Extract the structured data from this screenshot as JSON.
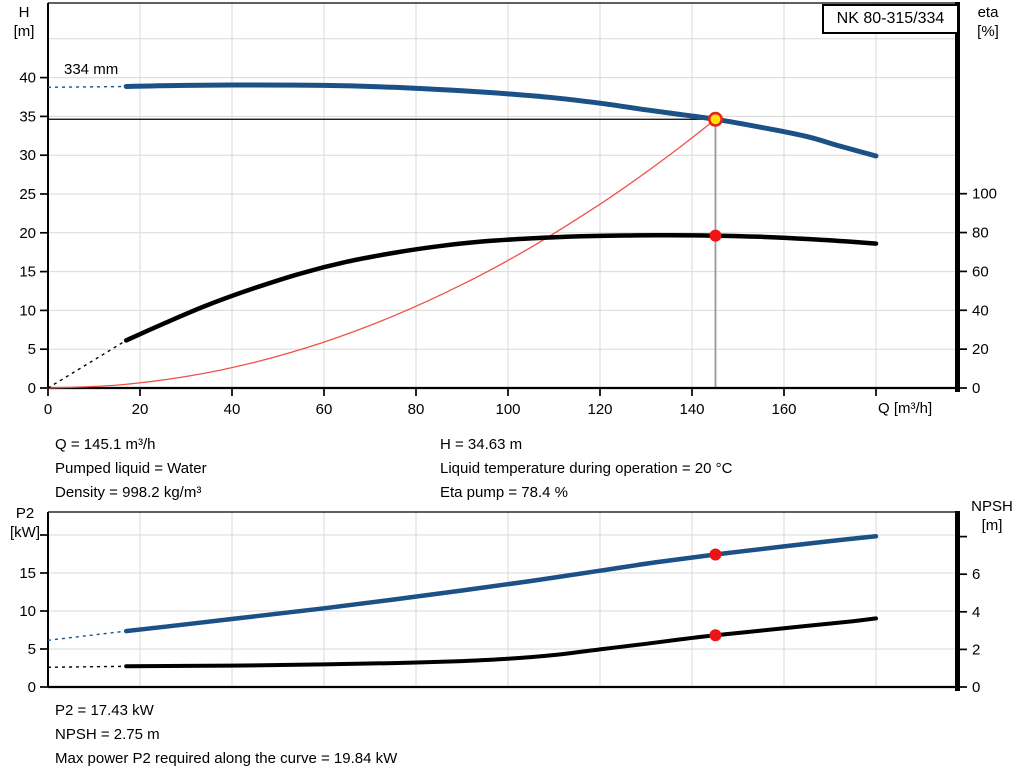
{
  "pump_model": "NK 80-315/334",
  "impeller_label": "334 mm",
  "colors": {
    "curve_blue": "#1b5186",
    "curve_black": "#000000",
    "system_red": "#f05048",
    "marker_red": "#ee1414",
    "marker_yellow": "#ffe10a",
    "marker_ring": "#e8251d",
    "grid": "#d9d9d9",
    "op_line_gray": "#999999"
  },
  "chart_data": [
    {
      "name": "performance-chart",
      "type": "line",
      "xlabel": "Q [m³/h]",
      "left_axis": {
        "title": [
          "H",
          "[m]"
        ],
        "ticks": [
          0,
          5,
          10,
          15,
          20,
          25,
          30,
          35,
          40
        ],
        "unlabeled_ticks": [],
        "range": [
          0,
          49.6
        ]
      },
      "right_axis": {
        "title": [
          "eta",
          "[%]"
        ],
        "ticks": [
          0,
          20,
          40,
          60,
          80,
          100
        ],
        "unlabeled_ticks": []
      },
      "x_axis": {
        "ticks": [
          0,
          20,
          40,
          60,
          80,
          100,
          120,
          140,
          160
        ],
        "unlabeled_ticks": [
          180
        ],
        "range": [
          0,
          197.4
        ]
      },
      "v_grid": [
        20,
        40,
        60,
        80,
        100,
        120,
        140,
        160,
        180
      ],
      "h_grid": [
        5,
        10,
        15,
        20,
        25,
        30,
        35,
        40,
        45
      ],
      "guides": {
        "h_line_y": 34.63,
        "v_line_x": 145.1
      },
      "series": [
        {
          "name": "system-curve",
          "axis": "left",
          "color_key": "system_red",
          "width": 1.3,
          "points": [
            [
              0,
              0
            ],
            [
              15,
              0.37
            ],
            [
              30,
              1.48
            ],
            [
              45,
              3.33
            ],
            [
              60,
              5.92
            ],
            [
              75,
              9.25
            ],
            [
              90,
              13.32
            ],
            [
              105,
              18.13
            ],
            [
              120,
              23.68
            ],
            [
              130,
              27.79
            ],
            [
              138,
              31.32
            ],
            [
              145.1,
              34.63
            ]
          ]
        },
        {
          "name": "head-curve",
          "axis": "left",
          "color_key": "curve_blue",
          "width": 5,
          "dashed_lead": [
            [
              0,
              38.75
            ],
            [
              17,
              38.85
            ]
          ],
          "points": [
            [
              17,
              38.85
            ],
            [
              30,
              39.0
            ],
            [
              45,
              39.05
            ],
            [
              60,
              39.0
            ],
            [
              75,
              38.75
            ],
            [
              90,
              38.3
            ],
            [
              100,
              37.9
            ],
            [
              110,
              37.4
            ],
            [
              120,
              36.7
            ],
            [
              130,
              35.85
            ],
            [
              138,
              35.2
            ],
            [
              145.1,
              34.63
            ],
            [
              155,
              33.6
            ],
            [
              165,
              32.4
            ],
            [
              172,
              31.2
            ],
            [
              180,
              29.9
            ]
          ]
        },
        {
          "name": "efficiency-curve",
          "axis": "right",
          "color_key": "curve_black",
          "width": 4.5,
          "dashed_lead": [
            [
              0,
              0
            ],
            [
              17,
              24.5
            ]
          ],
          "points": [
            [
              17,
              24.5
            ],
            [
              25,
              33
            ],
            [
              35,
              43
            ],
            [
              45,
              51.5
            ],
            [
              55,
              59
            ],
            [
              65,
              65
            ],
            [
              75,
              69.5
            ],
            [
              85,
              73
            ],
            [
              95,
              75.5
            ],
            [
              105,
              77
            ],
            [
              115,
              78
            ],
            [
              125,
              78.5
            ],
            [
              135,
              78.6
            ],
            [
              145.1,
              78.4
            ],
            [
              155,
              77.8
            ],
            [
              165,
              76.7
            ],
            [
              175,
              75.2
            ],
            [
              180,
              74.3
            ]
          ]
        }
      ],
      "markers": [
        {
          "name": "duty-point-marker",
          "x": 145.1,
          "y": 34.63,
          "axis": "left",
          "style": "yellow"
        },
        {
          "name": "efficiency-point-marker",
          "x": 145.1,
          "y": 78.4,
          "axis": "right",
          "style": "red"
        }
      ]
    },
    {
      "name": "power-npsh-chart",
      "type": "line",
      "xlabel": "",
      "left_axis": {
        "title": [
          "P2",
          "[kW]"
        ],
        "ticks": [
          0,
          5,
          10,
          15
        ],
        "unlabeled_ticks": [
          20
        ],
        "range": [
          0,
          23
        ]
      },
      "right_axis": {
        "title": [
          "NPSH",
          "[m]"
        ],
        "ticks": [
          0,
          2,
          4,
          6
        ],
        "unlabeled_ticks": [
          8
        ]
      },
      "x_axis": {
        "ticks": [],
        "unlabeled_ticks": [],
        "range": [
          0,
          197.4
        ]
      },
      "v_grid": [
        20,
        40,
        60,
        80,
        100,
        120,
        140,
        160,
        180
      ],
      "h_grid": [
        5,
        10,
        15,
        20
      ],
      "guides": null,
      "series": [
        {
          "name": "p2-curve",
          "axis": "left",
          "color_key": "curve_blue",
          "width": 4.5,
          "dashed_lead": [
            [
              0,
              6.15
            ],
            [
              17,
              7.35
            ]
          ],
          "points": [
            [
              17,
              7.35
            ],
            [
              30,
              8.25
            ],
            [
              45,
              9.3
            ],
            [
              60,
              10.35
            ],
            [
              75,
              11.5
            ],
            [
              90,
              12.7
            ],
            [
              105,
              13.95
            ],
            [
              120,
              15.3
            ],
            [
              132,
              16.4
            ],
            [
              145.1,
              17.43
            ],
            [
              160,
              18.5
            ],
            [
              170,
              19.2
            ],
            [
              180,
              19.84
            ]
          ]
        },
        {
          "name": "npsh-curve",
          "axis": "right",
          "color_key": "curve_black",
          "width": 4,
          "dashed_lead": [
            [
              0,
              1.05
            ],
            [
              17,
              1.1
            ]
          ],
          "points": [
            [
              17,
              1.1
            ],
            [
              30,
              1.12
            ],
            [
              45,
              1.15
            ],
            [
              60,
              1.2
            ],
            [
              75,
              1.27
            ],
            [
              90,
              1.38
            ],
            [
              100,
              1.5
            ],
            [
              110,
              1.7
            ],
            [
              120,
              2.0
            ],
            [
              130,
              2.3
            ],
            [
              138,
              2.55
            ],
            [
              145.1,
              2.75
            ],
            [
              155,
              3.0
            ],
            [
              165,
              3.25
            ],
            [
              175,
              3.5
            ],
            [
              180,
              3.65
            ]
          ]
        }
      ],
      "markers": [
        {
          "name": "p2-point-marker",
          "x": 145.1,
          "y": 17.43,
          "axis": "left",
          "style": "red"
        },
        {
          "name": "npsh-point-marker",
          "x": 145.1,
          "y": 2.75,
          "axis": "right",
          "style": "red"
        }
      ]
    }
  ],
  "info_panel_top": {
    "left": [
      "Q = 145.1 m³/h",
      "Pumped liquid = Water",
      "Density = 998.2 kg/m³"
    ],
    "right": [
      "H = 34.63 m",
      "Liquid temperature during operation = 20 °C",
      "Eta pump = 78.4 %"
    ]
  },
  "info_panel_bottom": [
    "P2 = 17.43 kW",
    "NPSH = 2.75 m",
    "Max power P2 required along the curve = 19.84 kW"
  ]
}
